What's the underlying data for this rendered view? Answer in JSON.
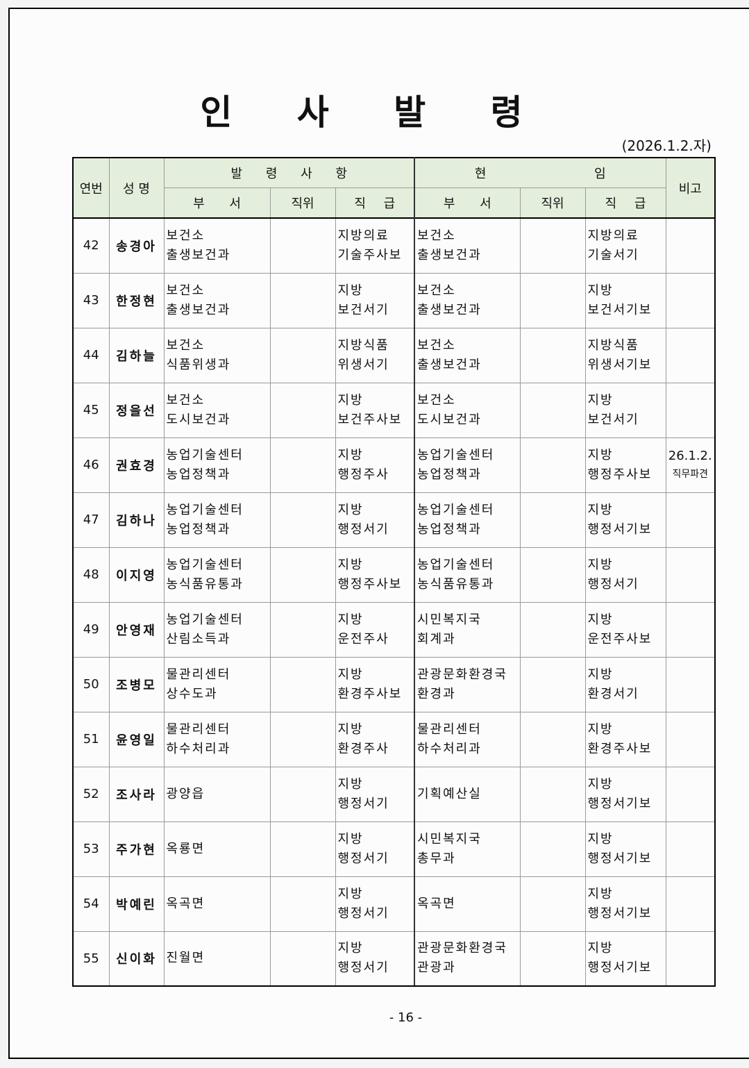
{
  "title": "인 사 발 령",
  "date": "(2026.1.2.자)",
  "headers": {
    "no": "연번",
    "name": "성 명",
    "order": "발 령 사 항",
    "current": "현 임",
    "remark": "비고",
    "dept": "부 서",
    "position": "직위",
    "grade": "직 급"
  },
  "rows": [
    {
      "no": "42",
      "name": "송경아",
      "new_dept": [
        "보건소",
        "출생보건과"
      ],
      "new_grade": [
        "지방의료",
        "기술주사보"
      ],
      "cur_dept": [
        "보건소",
        "출생보건과"
      ],
      "cur_grade": [
        "지방의료",
        "기술서기"
      ],
      "remark": [
        "",
        ""
      ]
    },
    {
      "no": "43",
      "name": "한정현",
      "new_dept": [
        "보건소",
        "출생보건과"
      ],
      "new_grade": [
        "지방",
        "보건서기"
      ],
      "cur_dept": [
        "보건소",
        "출생보건과"
      ],
      "cur_grade": [
        "지방",
        "보건서기보"
      ],
      "remark": [
        "",
        ""
      ]
    },
    {
      "no": "44",
      "name": "김하늘",
      "new_dept": [
        "보건소",
        "식품위생과"
      ],
      "new_grade": [
        "지방식품",
        "위생서기"
      ],
      "cur_dept": [
        "보건소",
        "출생보건과"
      ],
      "cur_grade": [
        "지방식품",
        "위생서기보"
      ],
      "remark": [
        "",
        ""
      ]
    },
    {
      "no": "45",
      "name": "정을선",
      "new_dept": [
        "보건소",
        "도시보건과"
      ],
      "new_grade": [
        "지방",
        "보건주사보"
      ],
      "cur_dept": [
        "보건소",
        "도시보건과"
      ],
      "cur_grade": [
        "지방",
        "보건서기"
      ],
      "remark": [
        "",
        ""
      ]
    },
    {
      "no": "46",
      "name": "권효경",
      "new_dept": [
        "농업기술센터",
        "농업정책과"
      ],
      "new_grade": [
        "지방",
        "행정주사"
      ],
      "cur_dept": [
        "농업기술센터",
        "농업정책과"
      ],
      "cur_grade": [
        "지방",
        "행정주사보"
      ],
      "remark": [
        "26.1.2.",
        "직무파견"
      ]
    },
    {
      "no": "47",
      "name": "김하나",
      "new_dept": [
        "농업기술센터",
        "농업정책과"
      ],
      "new_grade": [
        "지방",
        "행정서기"
      ],
      "cur_dept": [
        "농업기술센터",
        "농업정책과"
      ],
      "cur_grade": [
        "지방",
        "행정서기보"
      ],
      "remark": [
        "",
        ""
      ]
    },
    {
      "no": "48",
      "name": "이지영",
      "new_dept": [
        "농업기술센터",
        "농식품유통과"
      ],
      "new_grade": [
        "지방",
        "행정주사보"
      ],
      "cur_dept": [
        "농업기술센터",
        "농식품유통과"
      ],
      "cur_grade": [
        "지방",
        "행정서기"
      ],
      "remark": [
        "",
        ""
      ]
    },
    {
      "no": "49",
      "name": "안영재",
      "new_dept": [
        "농업기술센터",
        "산림소득과"
      ],
      "new_grade": [
        "지방",
        "운전주사"
      ],
      "cur_dept": [
        "시민복지국",
        "회계과"
      ],
      "cur_grade": [
        "지방",
        "운전주사보"
      ],
      "remark": [
        "",
        ""
      ]
    },
    {
      "no": "50",
      "name": "조병모",
      "new_dept": [
        "물관리센터",
        "상수도과"
      ],
      "new_grade": [
        "지방",
        "환경주사보"
      ],
      "cur_dept": [
        "관광문화환경국",
        "환경과"
      ],
      "cur_grade": [
        "지방",
        "환경서기"
      ],
      "remark": [
        "",
        ""
      ]
    },
    {
      "no": "51",
      "name": "윤영일",
      "new_dept": [
        "물관리센터",
        "하수처리과"
      ],
      "new_grade": [
        "지방",
        "환경주사"
      ],
      "cur_dept": [
        "물관리센터",
        "하수처리과"
      ],
      "cur_grade": [
        "지방",
        "환경주사보"
      ],
      "remark": [
        "",
        ""
      ]
    },
    {
      "no": "52",
      "name": "조사라",
      "new_dept": [
        "광양읍"
      ],
      "new_grade": [
        "지방",
        "행정서기"
      ],
      "cur_dept": [
        "기획예산실"
      ],
      "cur_grade": [
        "지방",
        "행정서기보"
      ],
      "remark": [
        "",
        ""
      ]
    },
    {
      "no": "53",
      "name": "주가현",
      "new_dept": [
        "옥룡면"
      ],
      "new_grade": [
        "지방",
        "행정서기"
      ],
      "cur_dept": [
        "시민복지국",
        "총무과"
      ],
      "cur_grade": [
        "지방",
        "행정서기보"
      ],
      "remark": [
        "",
        ""
      ]
    },
    {
      "no": "54",
      "name": "박예린",
      "new_dept": [
        "옥곡면"
      ],
      "new_grade": [
        "지방",
        "행정서기"
      ],
      "cur_dept": [
        "옥곡면"
      ],
      "cur_grade": [
        "지방",
        "행정서기보"
      ],
      "remark": [
        "",
        ""
      ]
    },
    {
      "no": "55",
      "name": "신이화",
      "new_dept": [
        "진월면"
      ],
      "new_grade": [
        "지방",
        "행정서기"
      ],
      "cur_dept": [
        "관광문화환경국",
        "관광과"
      ],
      "cur_grade": [
        "지방",
        "행정서기보"
      ],
      "remark": [
        "",
        ""
      ]
    }
  ],
  "page_number": "- 16 -"
}
